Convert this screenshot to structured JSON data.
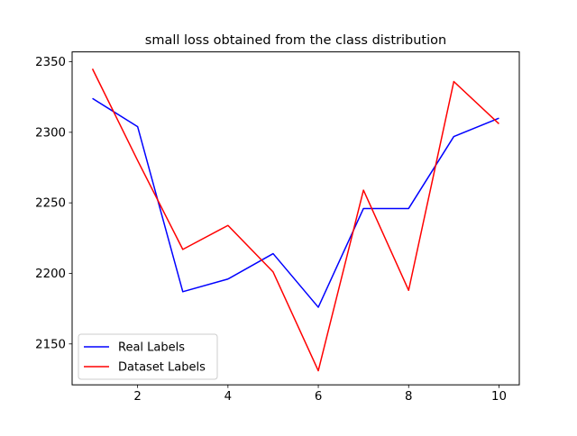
{
  "chart_data": {
    "type": "line",
    "title": "small loss obtained from the class distribution",
    "xlabel": "",
    "ylabel": "",
    "x": [
      1,
      2,
      3,
      4,
      5,
      6,
      7,
      8,
      9,
      10
    ],
    "xlim": [
      0.55,
      10.45
    ],
    "ylim": [
      2121,
      2357
    ],
    "xticks": [
      2,
      4,
      6,
      8,
      10
    ],
    "yticks": [
      2150,
      2200,
      2250,
      2300,
      2350
    ],
    "grid": false,
    "legend": "lower-left",
    "series": [
      {
        "name": "Real Labels",
        "color": "#0000ff",
        "values": [
          2324,
          2304,
          2187,
          2196,
          2214,
          2176,
          2246,
          2246,
          2297,
          2310
        ]
      },
      {
        "name": "Dataset Labels",
        "color": "#ff0000",
        "values": [
          2345,
          2280,
          2217,
          2234,
          2201,
          2131,
          2259,
          2188,
          2336,
          2306
        ]
      }
    ]
  }
}
